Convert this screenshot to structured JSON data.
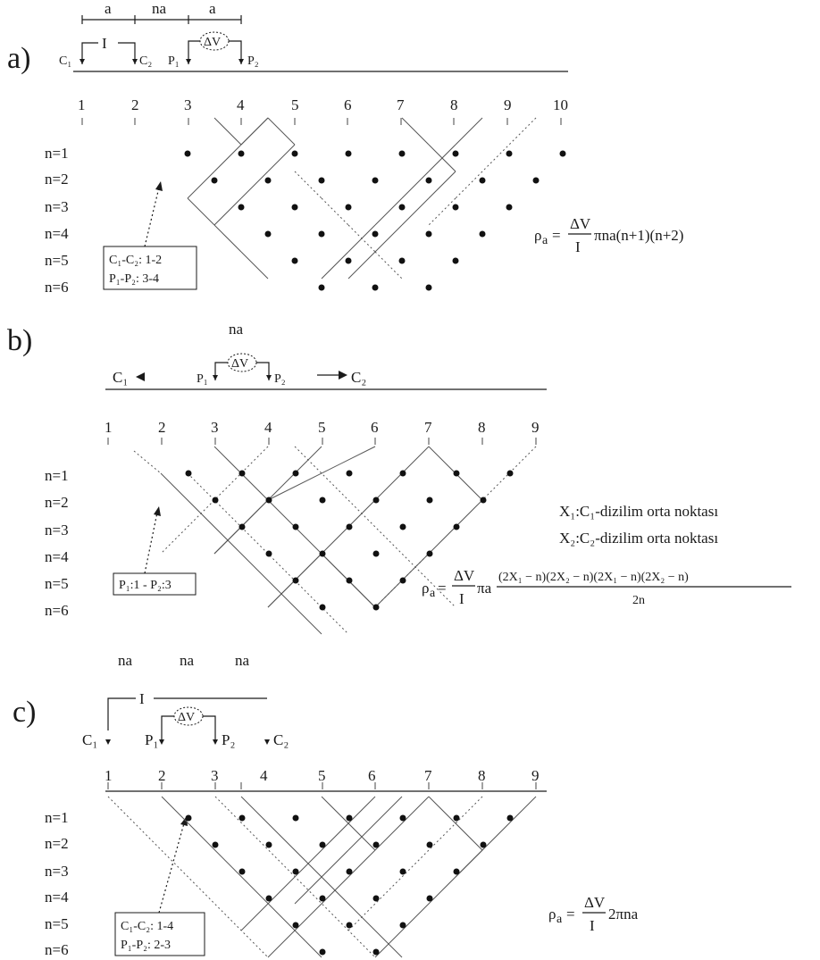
{
  "panels": [
    {
      "id": "a",
      "panel_label": "a)",
      "spacing_labels": [
        "a",
        "na",
        "a"
      ],
      "current_label": "I",
      "voltage_label": "ΔV",
      "electrode_labels": [
        "C₁",
        "C₂",
        "P₁",
        "P₂"
      ],
      "electrode_numbers": [
        "1",
        "2",
        "3",
        "4",
        "5",
        "6",
        "7",
        "8",
        "9",
        "10"
      ],
      "level_labels": [
        "n=1",
        "n=2",
        "n=3",
        "n=4",
        "n=5",
        "n=6"
      ],
      "legend_lines": [
        "C₁-C₂: 1-2",
        "P₁-P₂: 3-4"
      ],
      "formula": "ρₐ = (ΔV / I) πna(n+1)(n+2)"
    },
    {
      "id": "b",
      "panel_label": "b)",
      "spacing_labels": [
        "na"
      ],
      "voltage_label": "ΔV",
      "electrode_labels": [
        "C₁",
        "P₁",
        "P₂",
        "C₂"
      ],
      "electrode_numbers": [
        "1",
        "2",
        "3",
        "4",
        "5",
        "6",
        "7",
        "8",
        "9"
      ],
      "level_labels": [
        "n=1",
        "n=2",
        "n=3",
        "n=4",
        "n=5",
        "n=6"
      ],
      "legend_lines": [
        "P₁:1 - P₂:3"
      ],
      "notes": [
        "X₁:C₁-dizilim orta noktası",
        "X₂:C₂-dizilim orta noktası"
      ],
      "formula": "ρₐ = (ΔV / I) πa (2X₁ − n)(2X₂ − n)(2X₁ − n)(2X₂ − n) / 2n"
    },
    {
      "id": "c",
      "panel_label": "c)",
      "spacing_labels": [
        "na",
        "na",
        "na"
      ],
      "current_label": "I",
      "voltage_label": "ΔV",
      "electrode_labels": [
        "C₁",
        "P₁",
        "P₂",
        "C₂"
      ],
      "electrode_numbers": [
        "1",
        "2",
        "3",
        "4",
        "5",
        "6",
        "7",
        "8",
        "9"
      ],
      "level_labels": [
        "n=1",
        "n=2",
        "n=3",
        "n=4",
        "n=5",
        "n=6"
      ],
      "legend_lines": [
        "C₁-C₂: 1-4",
        "P₁-P₂: 2-3"
      ],
      "formula": "ρₐ = (ΔV / I) 2πna"
    }
  ]
}
